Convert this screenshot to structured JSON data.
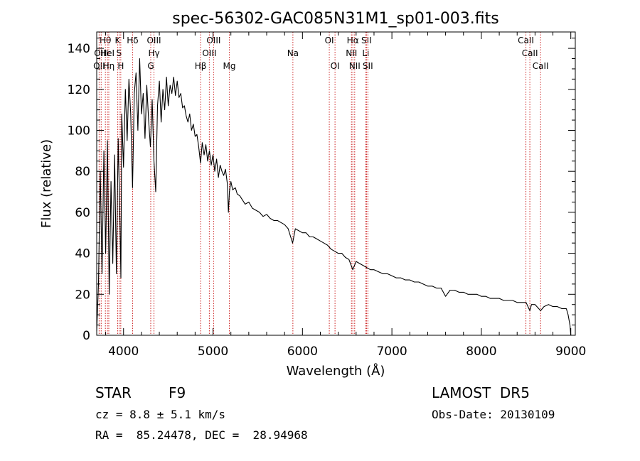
{
  "chart_data": {
    "type": "line",
    "title": "spec-56302-GAC085N31M1_sp01-003.fits",
    "xlabel": "Wavelength (Å)",
    "ylabel": "Flux (relative)",
    "xlim": [
      3700,
      9050
    ],
    "ylim": [
      0,
      148
    ],
    "xticks": [
      4000,
      5000,
      6000,
      7000,
      8000,
      9000
    ],
    "yticks": [
      0,
      20,
      40,
      60,
      80,
      100,
      120,
      140
    ],
    "grid": false,
    "line_color": "#000000",
    "marker_color": "#cc2222",
    "series": [
      {
        "x": [
          3700,
          3720,
          3740,
          3760,
          3780,
          3800,
          3820,
          3840,
          3860,
          3880,
          3900,
          3920,
          3940,
          3960,
          3970,
          3980,
          4000,
          4020,
          4040,
          4060,
          4080,
          4101,
          4120,
          4140,
          4160,
          4180,
          4200,
          4220,
          4240,
          4260,
          4280,
          4300,
          4320,
          4340,
          4360,
          4380,
          4400,
          4420,
          4440,
          4460,
          4480,
          4500,
          4520,
          4540,
          4560,
          4580,
          4600,
          4620,
          4640,
          4660,
          4680,
          4700,
          4720,
          4740,
          4760,
          4780,
          4800,
          4820,
          4840,
          4861,
          4880,
          4900,
          4920,
          4940,
          4960,
          4980,
          5000,
          5020,
          5040,
          5060,
          5080,
          5100,
          5120,
          5140,
          5160,
          5172,
          5183,
          5200,
          5220,
          5250,
          5270,
          5300,
          5330,
          5360,
          5400,
          5440,
          5480,
          5520,
          5560,
          5600,
          5640,
          5680,
          5720,
          5760,
          5800,
          5840,
          5890,
          5920,
          5960,
          6000,
          6040,
          6080,
          6120,
          6160,
          6200,
          6240,
          6280,
          6320,
          6360,
          6400,
          6440,
          6480,
          6520,
          6563,
          6600,
          6640,
          6680,
          6720,
          6760,
          6800,
          6850,
          6900,
          6950,
          7000,
          7050,
          7100,
          7150,
          7200,
          7250,
          7300,
          7350,
          7400,
          7450,
          7500,
          7550,
          7600,
          7650,
          7700,
          7750,
          7800,
          7850,
          7900,
          7950,
          8000,
          8050,
          8100,
          8150,
          8200,
          8250,
          8300,
          8350,
          8400,
          8450,
          8500,
          8542,
          8560,
          8600,
          8662,
          8700,
          8750,
          8800,
          8850,
          8900,
          8950,
          8970,
          8990,
          9000
        ],
        "values": [
          2,
          25,
          80,
          30,
          90,
          40,
          95,
          20,
          75,
          35,
          88,
          30,
          96,
          55,
          28,
          108,
          82,
          120,
          95,
          125,
          108,
          72,
          118,
          128,
          100,
          135,
          108,
          118,
          96,
          122,
          105,
          92,
          115,
          85,
          70,
          112,
          124,
          104,
          120,
          110,
          126,
          112,
          122,
          118,
          126,
          117,
          124,
          116,
          118,
          111,
          112,
          107,
          104,
          108,
          100,
          103,
          97,
          98,
          92,
          84,
          94,
          88,
          93,
          85,
          90,
          83,
          88,
          80,
          86,
          77,
          83,
          80,
          78,
          81,
          74,
          60,
          70,
          75,
          71,
          72,
          69,
          68,
          66,
          64,
          65,
          62,
          61,
          60,
          58,
          59,
          57,
          56,
          56,
          55,
          54,
          52,
          45,
          52,
          51,
          50,
          50,
          48,
          48,
          47,
          46,
          45,
          44,
          42,
          41,
          40,
          40,
          38,
          37,
          32,
          36,
          35,
          34,
          33,
          32,
          32,
          31,
          30,
          30,
          29,
          28,
          28,
          27,
          27,
          26,
          26,
          25,
          24,
          24,
          23,
          23,
          19,
          22,
          22,
          21,
          21,
          20,
          20,
          20,
          19,
          19,
          18,
          18,
          18,
          17,
          17,
          17,
          16,
          16,
          16,
          12,
          15,
          15,
          12,
          14,
          15,
          14,
          14,
          13,
          13,
          10,
          5,
          0
        ]
      }
    ],
    "markers": [
      {
        "label": "OII",
        "x": 3727,
        "row": 3
      },
      {
        "label": "Hθ",
        "x": 3797,
        "row": 1
      },
      {
        "label": "OIII",
        "x": 3750,
        "row": 2
      },
      {
        "label": "HeI",
        "x": 3820,
        "row": 2
      },
      {
        "label": "Hη",
        "x": 3835,
        "row": 3
      },
      {
        "label": "K",
        "x": 3934,
        "row": 1
      },
      {
        "label": "S",
        "x": 3950,
        "row": 2
      },
      {
        "label": "H",
        "x": 3969,
        "row": 3
      },
      {
        "label": "Hδ",
        "x": 4101,
        "row": 1
      },
      {
        "label": "OIII",
        "x": 4340,
        "row": 1
      },
      {
        "label": "Hγ",
        "x": 4340,
        "row": 2
      },
      {
        "label": "G",
        "x": 4304,
        "row": 3
      },
      {
        "label": "Hβ",
        "x": 4861,
        "row": 3
      },
      {
        "label": "OIII",
        "x": 5007,
        "row": 1
      },
      {
        "label": "OIII",
        "x": 4959,
        "row": 2
      },
      {
        "label": "Mg",
        "x": 5183,
        "row": 3
      },
      {
        "label": "Na",
        "x": 5893,
        "row": 2
      },
      {
        "label": "OI",
        "x": 6300,
        "row": 1
      },
      {
        "label": "OI",
        "x": 6364,
        "row": 3
      },
      {
        "label": "Hα",
        "x": 6563,
        "row": 1
      },
      {
        "label": "NII",
        "x": 6548,
        "row": 2
      },
      {
        "label": "NII",
        "x": 6584,
        "row": 3
      },
      {
        "label": "SII",
        "x": 6716,
        "row": 1
      },
      {
        "label": "Li",
        "x": 6708,
        "row": 2
      },
      {
        "label": "SII",
        "x": 6731,
        "row": 3
      },
      {
        "label": "CaII",
        "x": 8498,
        "row": 1
      },
      {
        "label": "CaII",
        "x": 8542,
        "row": 2
      },
      {
        "label": "CaII",
        "x": 8662,
        "row": 3
      }
    ]
  },
  "info": {
    "object_class": "STAR",
    "subclass": "F9",
    "survey": "LAMOST  DR5",
    "redshift": "cz = 8.8 ± 5.1 km/s",
    "obs_date": "Obs-Date: 20130109",
    "coords": "RA =  85.24478, DEC =  28.94968"
  }
}
